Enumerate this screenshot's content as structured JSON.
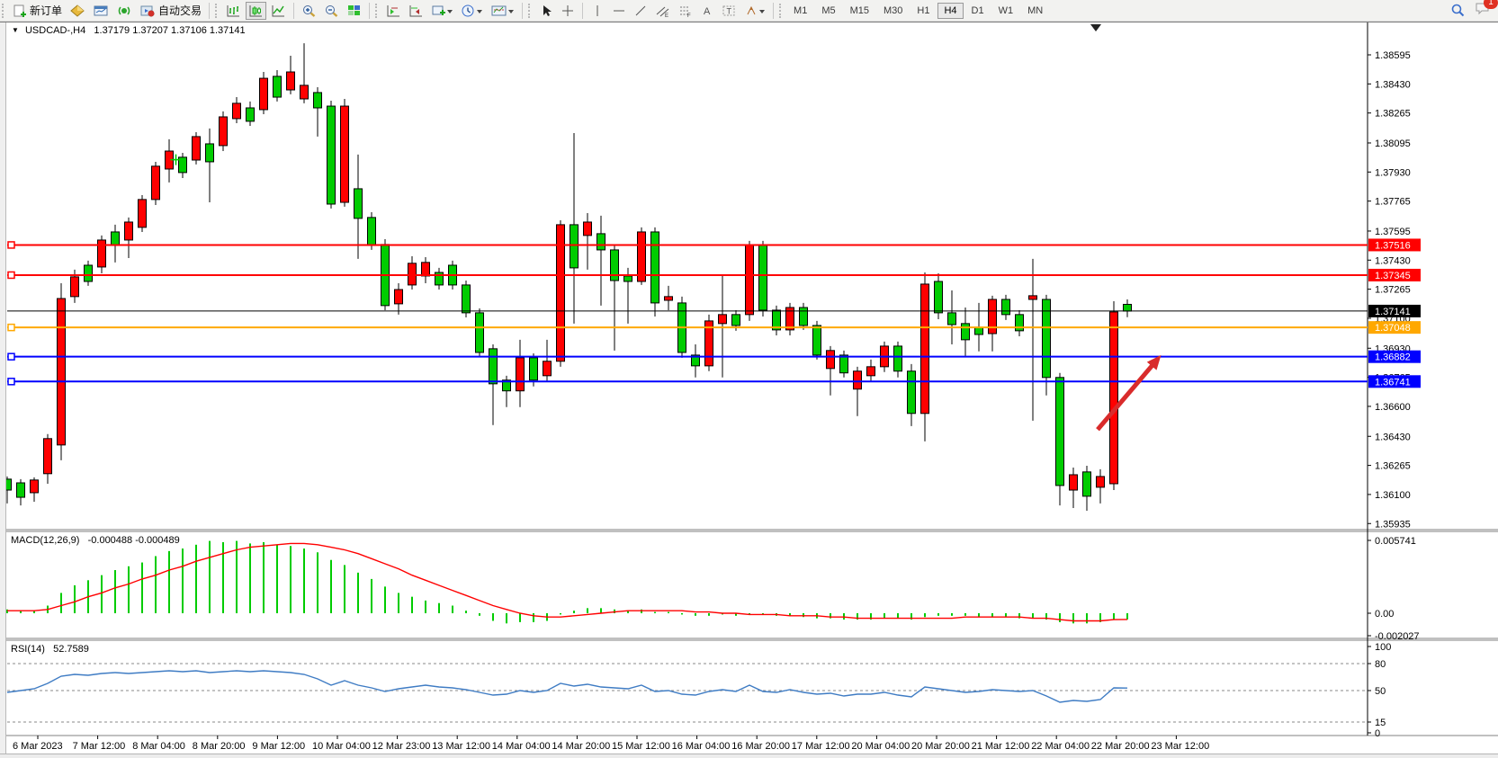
{
  "toolbar": {
    "new_order_label": "新订单",
    "auto_trading_label": "自动交易",
    "timeframes": [
      "M1",
      "M5",
      "M15",
      "M30",
      "H1",
      "H4",
      "D1",
      "W1",
      "MN"
    ],
    "active_timeframe": "H4",
    "notification_count": "1"
  },
  "chart": {
    "title": "USDCAD-,H4",
    "ohlc_text": "1.37179 1.37207 1.37106 1.37141"
  },
  "chart_data": {
    "type": "candlestick",
    "symbol": "USDCAD-",
    "timeframe": "H4",
    "ohlc_display": {
      "open": "1.37179",
      "high": "1.37207",
      "low": "1.37106",
      "close": "1.37141"
    },
    "colors": {
      "bull": "#ff0000",
      "bear": "#00cc00",
      "wick": "#000000"
    },
    "ylim": [
      1.359,
      1.3868
    ],
    "y_ticks": [
      "1.38595",
      "1.38430",
      "1.38265",
      "1.38095",
      "1.37930",
      "1.37765",
      "1.37595",
      "1.37430",
      "1.37265",
      "1.37100",
      "1.36930",
      "1.36765",
      "1.36600",
      "1.36430",
      "1.36265",
      "1.36100",
      "1.35935"
    ],
    "x_labels": [
      "6 Mar 2023",
      "7 Mar 12:00",
      "8 Mar 04:00",
      "8 Mar 20:00",
      "9 Mar 12:00",
      "10 Mar 04:00",
      "12 Mar 23:00",
      "13 Mar 12:00",
      "14 Mar 04:00",
      "14 Mar 20:00",
      "15 Mar 12:00",
      "16 Mar 04:00",
      "16 Mar 20:00",
      "17 Mar 12:00",
      "20 Mar 04:00",
      "20 Mar 20:00",
      "21 Mar 12:00",
      "22 Mar 04:00",
      "22 Mar 20:00",
      "23 Mar 12:00"
    ],
    "hlines": [
      {
        "price": 1.37516,
        "label": "1.37516",
        "color": "#ff0000",
        "type": "object"
      },
      {
        "price": 1.37345,
        "label": "1.37345",
        "color": "#ff0000",
        "type": "object"
      },
      {
        "price": 1.37141,
        "label": "1.37141",
        "color": "#000000",
        "type": "last-price"
      },
      {
        "price": 1.37048,
        "label": "1.37048",
        "color": "#ffa800",
        "type": "object"
      },
      {
        "price": 1.36882,
        "label": "1.36882",
        "color": "#0000ff",
        "type": "object"
      },
      {
        "price": 1.36741,
        "label": "1.36741",
        "color": "#0000ff",
        "type": "object"
      }
    ],
    "marker": {
      "shape": "cross",
      "color": "#00cc00",
      "bar": 13.5,
      "price": 1.38
    },
    "arrow": {
      "from_bar": 81.8,
      "from_price": 1.36468,
      "to_bar": 86.5,
      "to_price": 1.36891,
      "color": "#d92b2b"
    },
    "candles": [
      [
        1.36187,
        1.36202,
        1.36049,
        1.36125
      ],
      [
        1.36166,
        1.36187,
        1.36038,
        1.36084
      ],
      [
        1.3611,
        1.36197,
        1.36059,
        1.36182
      ],
      [
        1.36218,
        1.36443,
        1.36161,
        1.36417
      ],
      [
        1.36381,
        1.37299,
        1.36294,
        1.37212
      ],
      [
        1.37223,
        1.37376,
        1.37187,
        1.37335
      ],
      [
        1.37401,
        1.37427,
        1.37284,
        1.37309
      ],
      [
        1.37391,
        1.3757,
        1.37355,
        1.37544
      ],
      [
        1.3759,
        1.37631,
        1.37417,
        1.37513
      ],
      [
        1.37544,
        1.37672,
        1.37442,
        1.37646
      ],
      [
        1.37616,
        1.37799,
        1.3759,
        1.37774
      ],
      [
        1.37774,
        1.37988,
        1.37743,
        1.37963
      ],
      [
        1.37947,
        1.38116,
        1.37871,
        1.38049
      ],
      [
        1.38014,
        1.38039,
        1.37896,
        1.37927
      ],
      [
        1.37998,
        1.38156,
        1.37973,
        1.38131
      ],
      [
        1.3809,
        1.38177,
        1.37758,
        1.37988
      ],
      [
        1.3808,
        1.38274,
        1.38049,
        1.38243
      ],
      [
        1.38233,
        1.38355,
        1.38207,
        1.3832
      ],
      [
        1.38294,
        1.3833,
        1.38192,
        1.38218
      ],
      [
        1.38284,
        1.38498,
        1.38258,
        1.38462
      ],
      [
        1.38473,
        1.38508,
        1.3833,
        1.38355
      ],
      [
        1.38396,
        1.3859,
        1.38371,
        1.38498
      ],
      [
        1.38345,
        1.38661,
        1.3832,
        1.38422
      ],
      [
        1.38381,
        1.38411,
        1.38131,
        1.38294
      ],
      [
        1.38304,
        1.38335,
        1.37723,
        1.37748
      ],
      [
        1.37758,
        1.38345,
        1.37733,
        1.38304
      ],
      [
        1.37835,
        1.38029,
        1.37437,
        1.37667
      ],
      [
        1.37672,
        1.37702,
        1.37488,
        1.37513
      ],
      [
        1.37519,
        1.37549,
        1.37146,
        1.37172
      ],
      [
        1.37182,
        1.37299,
        1.37121,
        1.37263
      ],
      [
        1.37289,
        1.37452,
        1.37263,
        1.37412
      ],
      [
        1.3734,
        1.37447,
        1.37299,
        1.37417
      ],
      [
        1.3736,
        1.37386,
        1.37263,
        1.37289
      ],
      [
        1.37401,
        1.37427,
        1.37263,
        1.37289
      ],
      [
        1.37289,
        1.37314,
        1.37105,
        1.37131
      ],
      [
        1.37131,
        1.37156,
        1.36881,
        1.36906
      ],
      [
        1.36927,
        1.36952,
        1.36494,
        1.36728
      ],
      [
        1.36749,
        1.36774,
        1.36596,
        1.36688
      ],
      [
        1.36688,
        1.36978,
        1.36596,
        1.36876
      ],
      [
        1.36876,
        1.36901,
        1.36713,
        1.36749
      ],
      [
        1.36774,
        1.36978,
        1.36744,
        1.36856
      ],
      [
        1.36856,
        1.37656,
        1.36825,
        1.37631
      ],
      [
        1.37631,
        1.38151,
        1.3707,
        1.37386
      ],
      [
        1.3757,
        1.37697,
        1.37376,
        1.37646
      ],
      [
        1.3758,
        1.37682,
        1.37172,
        1.37488
      ],
      [
        1.37488,
        1.37519,
        1.36917,
        1.37314
      ],
      [
        1.3734,
        1.37386,
        1.3707,
        1.37309
      ],
      [
        1.37309,
        1.37616,
        1.37289,
        1.3759
      ],
      [
        1.3759,
        1.37616,
        1.3711,
        1.37187
      ],
      [
        1.37202,
        1.37284,
        1.37146,
        1.37223
      ],
      [
        1.37187,
        1.37223,
        1.36876,
        1.36906
      ],
      [
        1.36891,
        1.36952,
        1.36764,
        1.3683
      ],
      [
        1.3683,
        1.37121,
        1.368,
        1.37085
      ],
      [
        1.3707,
        1.3735,
        1.36764,
        1.37121
      ],
      [
        1.37121,
        1.37146,
        1.37029,
        1.37059
      ],
      [
        1.37121,
        1.37539,
        1.37085,
        1.37513
      ],
      [
        1.37513,
        1.37539,
        1.3711,
        1.37146
      ],
      [
        1.37146,
        1.37172,
        1.37003,
        1.37034
      ],
      [
        1.37034,
        1.37187,
        1.37003,
        1.37161
      ],
      [
        1.37161,
        1.37187,
        1.37034,
        1.37059
      ],
      [
        1.37059,
        1.37085,
        1.36866,
        1.36891
      ],
      [
        1.36815,
        1.36942,
        1.36662,
        1.36917
      ],
      [
        1.36891,
        1.36917,
        1.36764,
        1.3679
      ],
      [
        1.36698,
        1.36825,
        1.36545,
        1.368
      ],
      [
        1.36774,
        1.36866,
        1.36744,
        1.36825
      ],
      [
        1.36825,
        1.36968,
        1.36795,
        1.36942
      ],
      [
        1.36942,
        1.36968,
        1.36764,
        1.368
      ],
      [
        1.368,
        1.3684,
        1.36488,
        1.3656
      ],
      [
        1.3656,
        1.3736,
        1.36401,
        1.37294
      ],
      [
        1.37309,
        1.37355,
        1.37095,
        1.37131
      ],
      [
        1.37131,
        1.37258,
        1.36952,
        1.37064
      ],
      [
        1.3707,
        1.37161,
        1.36886,
        1.36978
      ],
      [
        1.37049,
        1.37187,
        1.36912,
        1.37008
      ],
      [
        1.37013,
        1.37228,
        1.36912,
        1.37207
      ],
      [
        1.37207,
        1.37233,
        1.3709,
        1.37121
      ],
      [
        1.37121,
        1.37146,
        1.36998,
        1.37029
      ],
      [
        1.37207,
        1.37437,
        1.36519,
        1.37228
      ],
      [
        1.37207,
        1.37233,
        1.36662,
        1.36764
      ],
      [
        1.36764,
        1.3679,
        1.36038,
        1.36151
      ],
      [
        1.36125,
        1.36253,
        1.36023,
        1.36212
      ],
      [
        1.36228,
        1.36263,
        1.36008,
        1.3609
      ],
      [
        1.36141,
        1.36243,
        1.36049,
        1.36202
      ],
      [
        1.36161,
        1.37197,
        1.36125,
        1.37136
      ],
      [
        1.37179,
        1.37207,
        1.37106,
        1.37141
      ]
    ],
    "macd": {
      "label": "MACD(12,26,9)",
      "values_text": "-0.000488 -0.000489",
      "y_ticks": [
        "0.005741",
        "0.00",
        "-0.002027"
      ],
      "colors": {
        "histogram": "#00cc00",
        "signal": "#ff0000"
      },
      "histogram": [
        0.0003,
        0.0002,
        0.0002,
        0.0006,
        0.0016,
        0.0022,
        0.0026,
        0.003,
        0.0034,
        0.0037,
        0.004,
        0.0045,
        0.0049,
        0.0051,
        0.0054,
        0.0057,
        0.0056,
        0.0057,
        0.0055,
        0.0056,
        0.0054,
        0.0053,
        0.0051,
        0.0048,
        0.0042,
        0.0038,
        0.0032,
        0.0027,
        0.0021,
        0.0016,
        0.0013,
        0.001,
        0.0008,
        0.0006,
        0.0002,
        -0.0002,
        -0.0006,
        -0.0008,
        -0.0007,
        -0.0007,
        -0.0006,
        -0.0001,
        0.0002,
        0.0004,
        0.0004,
        0.0003,
        0.0002,
        0.0003,
        0.0001,
        0.0001,
        -0.0001,
        -0.0002,
        -0.0002,
        -0.0001,
        -0.0002,
        0.0,
        -0.0001,
        -0.0002,
        -0.0002,
        -0.0003,
        -0.0004,
        -0.0004,
        -0.0005,
        -0.0005,
        -0.0005,
        -0.0004,
        -0.0004,
        -0.0005,
        -0.0003,
        -0.0002,
        -0.0002,
        -0.0002,
        -0.0003,
        -0.0003,
        -0.0003,
        -0.0004,
        -0.0004,
        -0.0005,
        -0.0007,
        -0.0008,
        -0.0008,
        -0.0007,
        -0.0005,
        -0.000488
      ],
      "signal": [
        0.0002,
        0.0002,
        0.0002,
        0.0003,
        0.0006,
        0.0009,
        0.0013,
        0.0016,
        0.002,
        0.0023,
        0.0027,
        0.003,
        0.0034,
        0.0037,
        0.0041,
        0.0044,
        0.0047,
        0.005,
        0.0052,
        0.0053,
        0.0054,
        0.0055,
        0.0055,
        0.0054,
        0.0052,
        0.005,
        0.0047,
        0.0043,
        0.0039,
        0.0035,
        0.003,
        0.0026,
        0.0022,
        0.0018,
        0.0014,
        0.001,
        0.0006,
        0.0003,
        0.0,
        -0.0002,
        -0.0003,
        -0.0003,
        -0.0002,
        -0.0001,
        0.0,
        0.0001,
        0.0002,
        0.0002,
        0.0002,
        0.0002,
        0.0002,
        0.0001,
        0.0001,
        0.0,
        0.0,
        -0.0001,
        -0.0001,
        -0.0001,
        -0.0002,
        -0.0002,
        -0.0002,
        -0.0003,
        -0.0003,
        -0.0004,
        -0.0004,
        -0.0004,
        -0.0004,
        -0.0004,
        -0.0004,
        -0.0004,
        -0.0004,
        -0.0003,
        -0.0003,
        -0.0003,
        -0.0003,
        -0.0003,
        -0.0004,
        -0.0004,
        -0.0005,
        -0.0006,
        -0.0006,
        -0.0006,
        -0.0005,
        -0.000489
      ]
    },
    "rsi": {
      "label": "RSI(14)",
      "value_text": "52.7589",
      "color": "#3f7cc4",
      "levels": [
        80,
        50,
        15
      ],
      "y_ticks": [
        "100",
        "80",
        "50",
        "15",
        "0"
      ],
      "series": [
        48,
        50,
        52,
        58,
        66,
        68,
        67,
        69,
        70,
        69,
        70,
        71,
        72,
        71,
        72,
        70,
        71,
        72,
        71,
        72,
        71,
        70,
        68,
        63,
        56,
        61,
        56,
        53,
        49,
        52,
        54,
        56,
        54,
        53,
        51,
        48,
        45,
        46,
        50,
        48,
        50,
        58,
        55,
        57,
        54,
        53,
        52,
        56,
        49,
        50,
        46,
        45,
        49,
        51,
        49,
        56,
        49,
        48,
        51,
        48,
        46,
        47,
        44,
        46,
        46,
        48,
        45,
        43,
        54,
        52,
        50,
        48,
        49,
        51,
        50,
        49,
        50,
        44,
        37,
        39,
        38,
        40,
        53,
        52.7589
      ]
    }
  }
}
